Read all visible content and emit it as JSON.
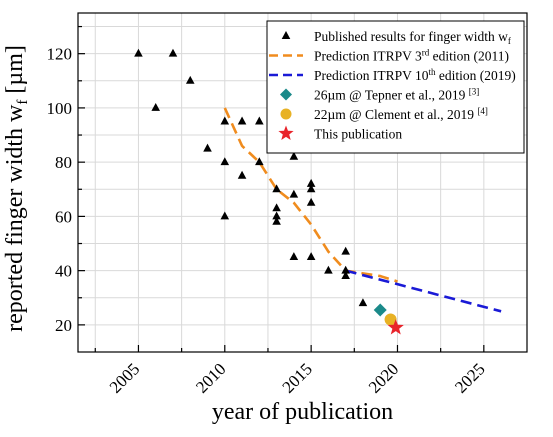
{
  "chart_data": {
    "type": "scatter",
    "xlabel": "year of publication",
    "ylabel_main": "reported finger width w",
    "ylabel_sub": "f",
    "ylabel_unit": " [µm]",
    "xlim": [
      2001.5,
      2027.5
    ],
    "ylim": [
      10,
      135
    ],
    "x_ticks": [
      2005,
      2010,
      2015,
      2020,
      2025
    ],
    "y_ticks": [
      20,
      40,
      60,
      80,
      100,
      120
    ],
    "grid": true,
    "legend_position": "top-right",
    "colors": {
      "published": "#000000",
      "itrpv3": "#f08c1e",
      "itrpv10": "#1a1ad6",
      "tepner": "#1b8a8a",
      "clement": "#e8b225",
      "this_pub": "#e8232a"
    },
    "series": [
      {
        "name": "Published results for finger width w",
        "name_sub": "f",
        "marker": "triangle",
        "points": [
          [
            2005,
            120
          ],
          [
            2006,
            100
          ],
          [
            2007,
            120
          ],
          [
            2008,
            110
          ],
          [
            2009,
            85
          ],
          [
            2010,
            95
          ],
          [
            2010,
            80
          ],
          [
            2010,
            60
          ],
          [
            2011,
            95
          ],
          [
            2011,
            75
          ],
          [
            2012,
            95
          ],
          [
            2012,
            80
          ],
          [
            2013,
            70
          ],
          [
            2013,
            63
          ],
          [
            2013,
            60
          ],
          [
            2013,
            58
          ],
          [
            2014,
            82
          ],
          [
            2014,
            68
          ],
          [
            2014,
            45
          ],
          [
            2015,
            72
          ],
          [
            2015,
            70
          ],
          [
            2015,
            65
          ],
          [
            2015,
            45
          ],
          [
            2016,
            40
          ],
          [
            2017,
            47
          ],
          [
            2017,
            40
          ],
          [
            2017,
            38
          ],
          [
            2018,
            28
          ]
        ]
      },
      {
        "name": "Prediction ITRPV   3",
        "name_sup": "rd",
        "name_tail": " edition (2011)",
        "style": "dashed-line",
        "points": [
          [
            2010,
            100
          ],
          [
            2011,
            86
          ],
          [
            2012,
            80
          ],
          [
            2013,
            70
          ],
          [
            2014,
            65
          ],
          [
            2015,
            57
          ],
          [
            2016,
            47
          ],
          [
            2017,
            40
          ],
          [
            2018,
            39
          ],
          [
            2019,
            38
          ],
          [
            2020,
            36
          ]
        ]
      },
      {
        "name": "Prediction ITRPV 10",
        "name_sup": "th",
        "name_tail": " edition (2019)",
        "style": "dashed-line",
        "points": [
          [
            2017,
            40
          ],
          [
            2026,
            25
          ]
        ]
      },
      {
        "name": "26µm @ Tepner et al., 2019 ",
        "name_sup": "[3]",
        "marker": "diamond",
        "points": [
          [
            2019,
            25.5
          ]
        ]
      },
      {
        "name": "22µm @ Clement et al., 2019 ",
        "name_sup": "[4]",
        "marker": "circle",
        "points": [
          [
            2019.6,
            22
          ]
        ]
      },
      {
        "name": "This publication",
        "marker": "star",
        "points": [
          [
            2019.9,
            19
          ]
        ]
      }
    ]
  }
}
